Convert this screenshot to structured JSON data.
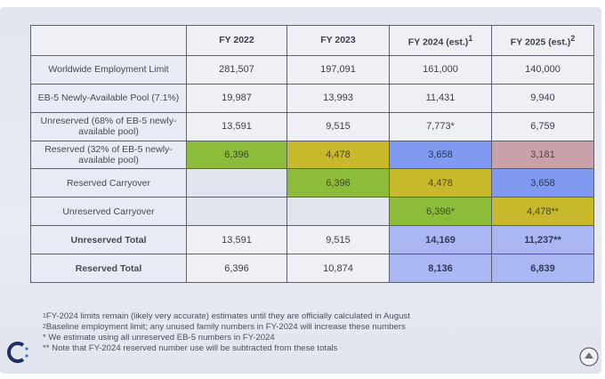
{
  "table": {
    "headers": [
      "",
      "FY 2022",
      "FY 2023",
      "FY 2024 (est.)",
      "FY 2025 (est.)"
    ],
    "header_sups": [
      "",
      "",
      "",
      "1",
      "2"
    ],
    "rows": [
      {
        "label": "Worldwide Employment Limit",
        "cells": [
          "281,507",
          "197,091",
          "161,000",
          "140,000"
        ]
      },
      {
        "label": "EB-5 Newly-Available Pool (7.1%)",
        "cells": [
          "19,987",
          "13,993",
          "11,431",
          "9,940"
        ]
      },
      {
        "label": "Unreserved (68% of EB-5 newly-available pool)",
        "cells": [
          "13,591",
          "9,515",
          "7,773*",
          "6,759"
        ]
      },
      {
        "label": "Reserved (32% of EB-5 newly-available pool)",
        "cells": [
          "6,396",
          "4,478",
          "3,658",
          "3,181"
        ]
      },
      {
        "label": "Reserved Carryover",
        "cells": [
          "",
          "6,396",
          "4,478",
          "3,658"
        ]
      },
      {
        "label": "Unreserved Carryover",
        "cells": [
          "",
          "",
          "6,396*",
          "4,478**"
        ]
      },
      {
        "label": "Unreserved Total",
        "cells": [
          "13,591",
          "9,515",
          "14,169",
          "11,237**"
        ]
      },
      {
        "label": "Reserved Total",
        "cells": [
          "6,396",
          "10,874",
          "8,136",
          "6,839"
        ]
      }
    ]
  },
  "colors": {
    "green": "#8dbb3a",
    "olive": "#c7b92b",
    "blue": "#7f9af0",
    "rose": "#c8a2a8",
    "light_blue": "#aab7f2"
  },
  "footnotes": [
    {
      "marker": "1",
      "text": "FY-2024 limits remain (likely very accurate) estimates until they are officially calculated in August"
    },
    {
      "marker": "2",
      "text": "Baseline employment limit; any unused family numbers in FY-2024 will increase these numbers"
    },
    {
      "marker": "*",
      "text": "We estimate using all unreserved EB-5 numbers in FY-2024"
    },
    {
      "marker": "**",
      "text": "Note that FY-2024 reserved number use will be subtracted from these totals"
    }
  ],
  "icons": {
    "logo": "company-logo-c",
    "seal": "seal-emblem"
  }
}
